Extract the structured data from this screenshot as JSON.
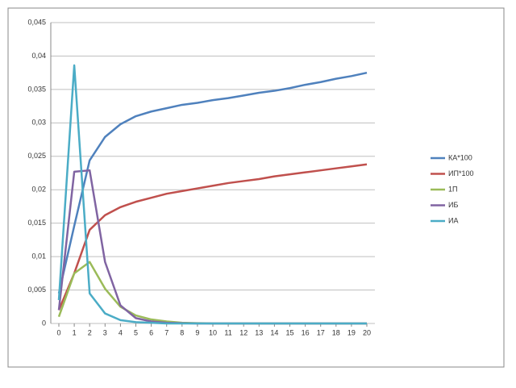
{
  "chart_data": {
    "type": "line",
    "categories": [
      "0",
      "1",
      "2",
      "3",
      "4",
      "5",
      "6",
      "7",
      "8",
      "9",
      "10",
      "11",
      "12",
      "13",
      "14",
      "15",
      "16",
      "17",
      "18",
      "19",
      "20"
    ],
    "series": [
      {
        "name": "КА*100",
        "color": "#4f81bd",
        "values": [
          0.0045,
          0.0146,
          0.0244,
          0.0279,
          0.0298,
          0.031,
          0.0317,
          0.0322,
          0.0327,
          0.033,
          0.0334,
          0.0337,
          0.0341,
          0.0345,
          0.0348,
          0.0352,
          0.0357,
          0.0361,
          0.0366,
          0.037,
          0.0375
        ]
      },
      {
        "name": "ИП*100",
        "color": "#c0504d",
        "values": [
          0.002,
          0.0075,
          0.014,
          0.0162,
          0.0174,
          0.0182,
          0.0188,
          0.0194,
          0.0198,
          0.0202,
          0.0206,
          0.021,
          0.0213,
          0.0216,
          0.022,
          0.0223,
          0.0226,
          0.0229,
          0.0232,
          0.0235,
          0.0238
        ]
      },
      {
        "name": "1П",
        "color": "#9bbb59",
        "values": [
          0.001,
          0.0075,
          0.0092,
          0.0052,
          0.0025,
          0.0012,
          0.0006,
          0.0003,
          0.0001,
          5e-05,
          0,
          0,
          0,
          0,
          0,
          0,
          0,
          0,
          0,
          0,
          0
        ]
      },
      {
        "name": "ИБ",
        "color": "#8064a2",
        "values": [
          0.002,
          0.0227,
          0.0229,
          0.0092,
          0.0027,
          0.0008,
          0.0003,
          0.0001,
          5e-05,
          0,
          0,
          0,
          0,
          0,
          0,
          0,
          0,
          0,
          0,
          0,
          0
        ]
      },
      {
        "name": "ИА",
        "color": "#4bacc6",
        "values": [
          0.0035,
          0.0386,
          0.0045,
          0.0015,
          0.0005,
          0.0002,
          0.0001,
          0,
          0,
          0,
          0,
          0,
          0,
          0,
          0,
          0,
          0,
          0,
          0,
          0,
          0
        ]
      }
    ],
    "ylim": [
      0,
      0.045
    ],
    "yticks": [
      0,
      {
        "value": 0.005,
        "label": "0,005"
      },
      {
        "value": 0.01,
        "label": "0,01"
      },
      {
        "value": 0.015,
        "label": "0,015"
      },
      {
        "value": 0.02,
        "label": "0,02"
      },
      {
        "value": 0.025,
        "label": "0,025"
      },
      {
        "value": 0.03,
        "label": "0,03"
      },
      {
        "value": 0.035,
        "label": "0,035"
      },
      {
        "value": 0.04,
        "label": "0,04"
      },
      {
        "value": 0.045,
        "label": "0,045"
      }
    ],
    "grid": true,
    "legend": "right"
  }
}
